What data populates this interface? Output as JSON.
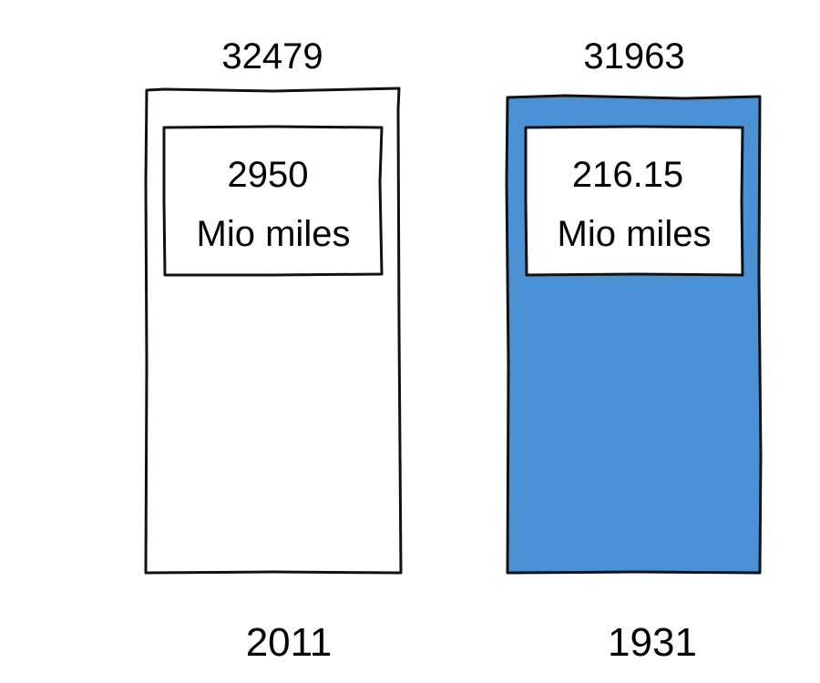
{
  "chart_data": {
    "type": "bar",
    "title": "",
    "xlabel": "",
    "ylabel": "",
    "grid": false,
    "legend": "none",
    "categories": [
      "2011",
      "1931"
    ],
    "values": [
      32479,
      31963
    ],
    "inner_labels": [
      {
        "value": "2950",
        "unit": "Mio miles"
      },
      {
        "value": "216.15",
        "unit": "Mio miles"
      }
    ],
    "fills": [
      "#ffffff",
      "#4a90d4"
    ]
  },
  "colors": {
    "stroke": "#111111",
    "highlight": "#4a90d4",
    "background": "#ffffff"
  }
}
